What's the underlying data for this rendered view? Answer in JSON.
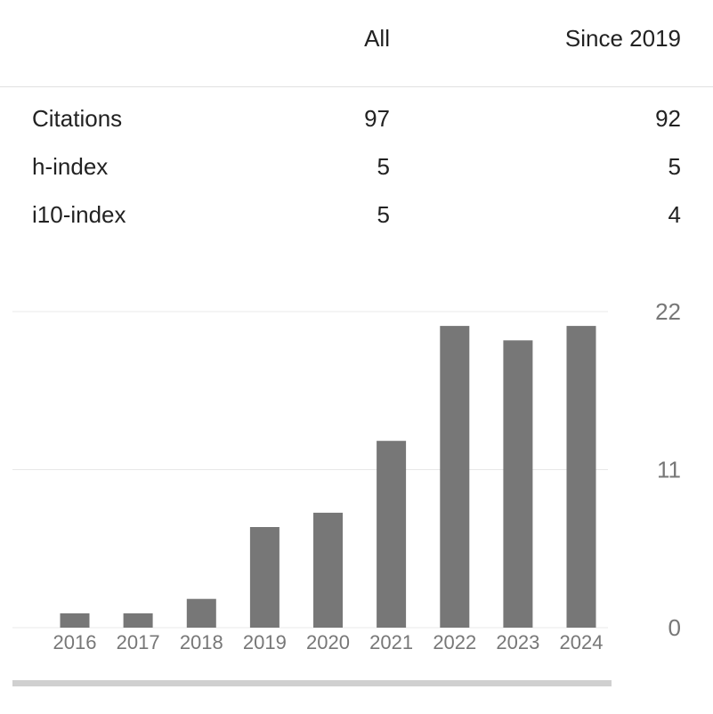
{
  "stats": {
    "headers": {
      "all": "All",
      "since": "Since 2019"
    },
    "rows": [
      {
        "metric": "Citations",
        "all": "97",
        "since": "92"
      },
      {
        "metric": "h-index",
        "all": "5",
        "since": "5"
      },
      {
        "metric": "i10-index",
        "all": "5",
        "since": "4"
      }
    ]
  },
  "chart_data": {
    "type": "bar",
    "categories": [
      "2016",
      "2017",
      "2018",
      "2019",
      "2020",
      "2021",
      "2022",
      "2023",
      "2024"
    ],
    "values": [
      1,
      1,
      2,
      7,
      8,
      13,
      21,
      20,
      21
    ],
    "ylim": [
      0,
      22
    ],
    "yticks": [
      0,
      11,
      22
    ],
    "grid": true,
    "bar_color": "#777777"
  }
}
